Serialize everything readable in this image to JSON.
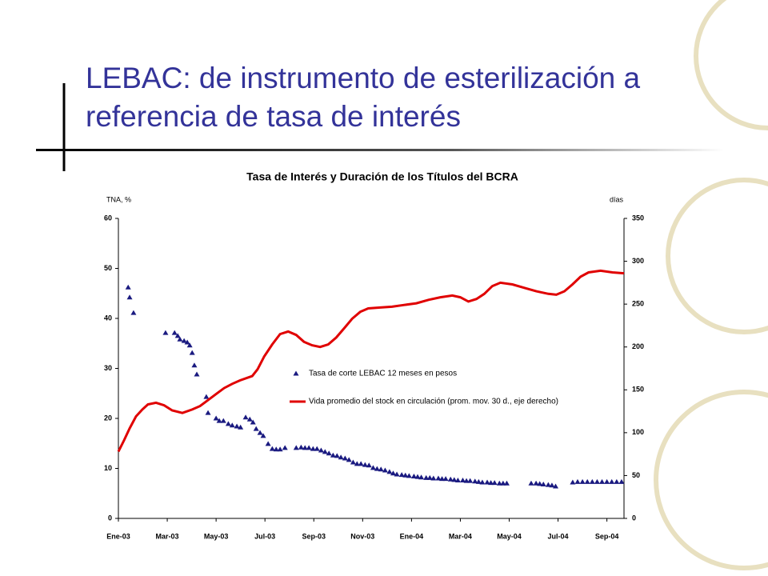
{
  "slide": {
    "title": [
      "LEBAC: de instrumento de esterilización a",
      "referencia de tasa de interés"
    ]
  },
  "chart_data": {
    "type": "combo",
    "title": "Tasa de Interés y Duración de los Títulos del BCRA",
    "ylabel": "TNA, %",
    "y2label": "días",
    "xlim": [
      0,
      20.7
    ],
    "xticks": [
      {
        "value": 0,
        "label": "Ene-03"
      },
      {
        "value": 2,
        "label": "Mar-03"
      },
      {
        "value": 4,
        "label": "May-03"
      },
      {
        "value": 6,
        "label": "Jul-03"
      },
      {
        "value": 8,
        "label": "Sep-03"
      },
      {
        "value": 10,
        "label": "Nov-03"
      },
      {
        "value": 12,
        "label": "Ene-04"
      },
      {
        "value": 14,
        "label": "Mar-04"
      },
      {
        "value": 16,
        "label": "May-04"
      },
      {
        "value": 18,
        "label": "Jul-04"
      },
      {
        "value": 20,
        "label": "Sep-04"
      }
    ],
    "ylim": [
      0,
      60
    ],
    "yticks": [
      0,
      10,
      20,
      30,
      40,
      50,
      60
    ],
    "y2lim": [
      0,
      350
    ],
    "y2ticks": [
      0,
      50,
      100,
      150,
      200,
      250,
      300,
      350
    ],
    "series": [
      {
        "name": "Tasa de corte LEBAC 12 meses en pesos",
        "type": "scatter",
        "color": "#1a1a80",
        "x": [
          0.4,
          0.46,
          0.62,
          1.93,
          2.3,
          2.43,
          2.52,
          2.69,
          2.82,
          2.92,
          3.02,
          3.11,
          3.21,
          3.6,
          3.67,
          4.0,
          4.13,
          4.3,
          4.5,
          4.66,
          4.85,
          5.0,
          5.21,
          5.38,
          5.51,
          5.64,
          5.8,
          5.93,
          6.13,
          6.3,
          6.46,
          6.62,
          6.82,
          7.28,
          7.48,
          7.64,
          7.8,
          7.97,
          8.13,
          8.3,
          8.46,
          8.62,
          8.79,
          8.95,
          9.11,
          9.28,
          9.44,
          9.61,
          9.77,
          9.93,
          10.1,
          10.26,
          10.43,
          10.59,
          10.75,
          10.92,
          11.1,
          11.25,
          11.4,
          11.6,
          11.75,
          11.9,
          12.1,
          12.25,
          12.4,
          12.6,
          12.75,
          12.9,
          13.1,
          13.25,
          13.4,
          13.6,
          13.75,
          13.9,
          14.1,
          14.25,
          14.4,
          14.6,
          14.75,
          14.9,
          15.1,
          15.25,
          15.4,
          15.6,
          15.75,
          15.9,
          16.9,
          17.1,
          17.25,
          17.4,
          17.6,
          17.75,
          17.9,
          18.6,
          18.8,
          19.0,
          19.2,
          19.4,
          19.6,
          19.8,
          20.0,
          20.2,
          20.4,
          20.6
        ],
        "values": [
          46.2,
          44.2,
          41.1,
          37.1,
          37.1,
          36.5,
          35.8,
          35.5,
          35.2,
          34.6,
          33.1,
          30.6,
          28.8,
          24.3,
          21.1,
          20,
          19.5,
          19.5,
          18.9,
          18.6,
          18.4,
          18.2,
          20.2,
          19.8,
          19.2,
          17.9,
          17.1,
          16.5,
          14.9,
          13.9,
          13.8,
          13.8,
          14.1,
          14.1,
          14.2,
          14.1,
          14.1,
          13.9,
          13.9,
          13.6,
          13.3,
          13.0,
          12.6,
          12.5,
          12.2,
          12.0,
          11.7,
          11.2,
          10.9,
          10.9,
          10.7,
          10.6,
          10.1,
          9.9,
          9.8,
          9.6,
          9.3,
          9.0,
          8.8,
          8.7,
          8.6,
          8.5,
          8.4,
          8.3,
          8.2,
          8.1,
          8.1,
          8.0,
          8.0,
          7.9,
          7.9,
          7.8,
          7.7,
          7.6,
          7.6,
          7.5,
          7.5,
          7.4,
          7.3,
          7.2,
          7.2,
          7.1,
          7.1,
          7.0,
          7.0,
          7.0,
          7.0,
          7.0,
          6.9,
          6.8,
          6.7,
          6.6,
          6.4,
          7.2,
          7.3,
          7.3,
          7.3,
          7.3,
          7.3,
          7.3,
          7.3,
          7.3,
          7.3,
          7.3
        ]
      },
      {
        "name": "Vida promedio del stock en circulación (prom. mov. 30 d., eje derecho)",
        "type": "line",
        "axis": "y2",
        "color": "#e00000",
        "x": [
          0,
          0.23,
          0.46,
          0.72,
          0.98,
          1.21,
          1.54,
          1.87,
          2.2,
          2.62,
          3.02,
          3.34,
          3.67,
          4.0,
          4.33,
          4.66,
          4.98,
          5.48,
          5.7,
          5.97,
          6.3,
          6.62,
          6.95,
          7.28,
          7.6,
          7.93,
          8.26,
          8.59,
          8.92,
          9.25,
          9.57,
          9.9,
          10.23,
          10.72,
          11.2,
          11.7,
          12.2,
          12.7,
          13.18,
          13.67,
          14.0,
          14.33,
          14.66,
          14.98,
          15.31,
          15.64,
          16.13,
          16.62,
          17.11,
          17.6,
          17.93,
          18.26,
          18.59,
          18.92,
          19.25,
          19.74,
          20.23,
          20.7
        ],
        "values": [
          78,
          91,
          105,
          119,
          127,
          133,
          135,
          132,
          126,
          123,
          127,
          131,
          138,
          145,
          152,
          157,
          161,
          166,
          174,
          189,
          203,
          215,
          218,
          214,
          206,
          202,
          200,
          203,
          211,
          222,
          233,
          241,
          245,
          246,
          247,
          249,
          251,
          255,
          258,
          260,
          258,
          253,
          256,
          262,
          271,
          275,
          273,
          269,
          265,
          262,
          261,
          265,
          273,
          282,
          287,
          289,
          287,
          286
        ]
      }
    ]
  }
}
